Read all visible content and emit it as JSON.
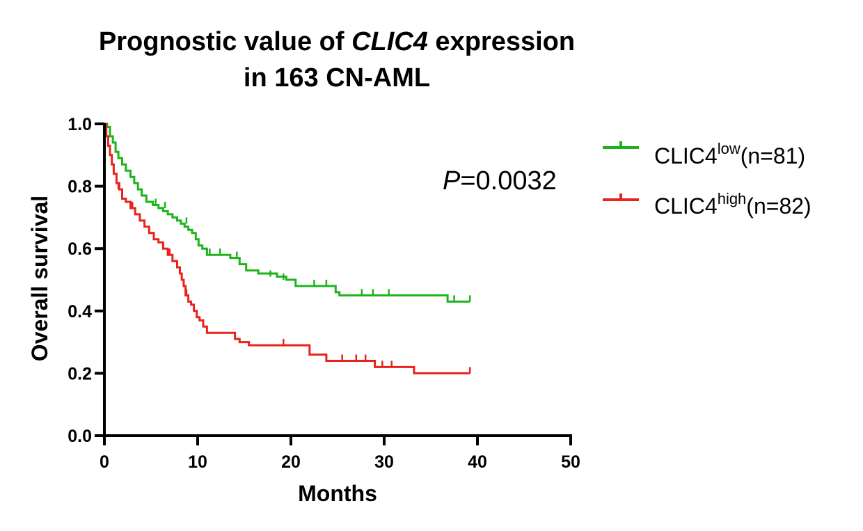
{
  "chart_data": {
    "type": "line",
    "title_prefix": "Prognostic value of ",
    "title_gene": "CLIC4",
    "title_suffix": " expression",
    "title_line2": "in 163 CN-AML",
    "xlabel": "Months",
    "ylabel": "Overall survival",
    "xlim": [
      0,
      50
    ],
    "ylim": [
      0,
      1.0
    ],
    "x_ticks": [
      "0",
      "10",
      "20",
      "30",
      "40",
      "50"
    ],
    "y_ticks": [
      "0.0",
      "0.2",
      "0.4",
      "0.6",
      "0.8",
      "1.0"
    ],
    "grid": false,
    "legend_position": "right",
    "pvalue_symbol": "P",
    "pvalue_text": "=0.0032",
    "series": [
      {
        "legend_base": "CLIC4",
        "legend_sup": "low",
        "legend_suffix": "(n=81)",
        "color": "#1bb51b",
        "x": [
          0,
          0.3,
          0.6,
          0.9,
          1.2,
          1.5,
          1.9,
          2.3,
          2.8,
          3.2,
          3.6,
          4.0,
          4.5,
          5.2,
          5.8,
          6.3,
          6.8,
          7.3,
          7.8,
          8.2,
          8.6,
          9.0,
          9.4,
          9.8,
          10.1,
          10.5,
          11.0,
          12.0,
          13.5,
          14.5,
          15.2,
          16.5,
          18.5,
          19.5,
          20.5,
          24.8,
          25.2,
          36.8,
          39.2
        ],
        "y": [
          1.0,
          0.99,
          0.96,
          0.94,
          0.91,
          0.89,
          0.87,
          0.85,
          0.83,
          0.81,
          0.79,
          0.77,
          0.75,
          0.74,
          0.73,
          0.72,
          0.71,
          0.7,
          0.69,
          0.68,
          0.67,
          0.66,
          0.65,
          0.63,
          0.61,
          0.6,
          0.58,
          0.58,
          0.57,
          0.55,
          0.53,
          0.52,
          0.51,
          0.5,
          0.48,
          0.46,
          0.45,
          0.43,
          0.43
        ],
        "censor_x": [
          5.5,
          6.5,
          8.8,
          11.3,
          12.4,
          14.2,
          17.8,
          19.2,
          22.5,
          23.8,
          27.6,
          28.8,
          30.5,
          37.5,
          39.2
        ],
        "censor_y": [
          0.74,
          0.73,
          0.68,
          0.58,
          0.58,
          0.57,
          0.51,
          0.5,
          0.48,
          0.48,
          0.45,
          0.45,
          0.45,
          0.43,
          0.43
        ]
      },
      {
        "legend_base": "CLIC4",
        "legend_sup": "high",
        "legend_suffix": "(n=82)",
        "color": "#e8231b",
        "x": [
          0,
          0.2,
          0.4,
          0.6,
          0.8,
          1.0,
          1.3,
          1.6,
          1.9,
          2.3,
          2.8,
          3.3,
          3.8,
          4.3,
          4.8,
          5.3,
          5.8,
          6.3,
          6.8,
          7.3,
          7.8,
          8.1,
          8.3,
          8.5,
          8.7,
          9.0,
          9.3,
          9.6,
          9.9,
          10.2,
          10.6,
          11.0,
          14.0,
          14.5,
          15.5,
          22.0,
          23.8,
          29.0,
          33.2,
          39.2
        ],
        "y": [
          1.0,
          0.96,
          0.93,
          0.9,
          0.87,
          0.84,
          0.81,
          0.79,
          0.76,
          0.75,
          0.73,
          0.71,
          0.69,
          0.67,
          0.65,
          0.63,
          0.62,
          0.6,
          0.58,
          0.56,
          0.54,
          0.52,
          0.5,
          0.48,
          0.45,
          0.43,
          0.42,
          0.4,
          0.38,
          0.37,
          0.35,
          0.33,
          0.31,
          0.3,
          0.29,
          0.26,
          0.24,
          0.22,
          0.2,
          0.2
        ],
        "censor_x": [
          1.5,
          3.0,
          7.0,
          8.8,
          14.0,
          19.2,
          25.5,
          27.0,
          28.0,
          29.8,
          30.8,
          39.2
        ],
        "censor_y": [
          0.79,
          0.73,
          0.58,
          0.45,
          0.31,
          0.29,
          0.24,
          0.24,
          0.24,
          0.22,
          0.22,
          0.2
        ]
      }
    ]
  }
}
